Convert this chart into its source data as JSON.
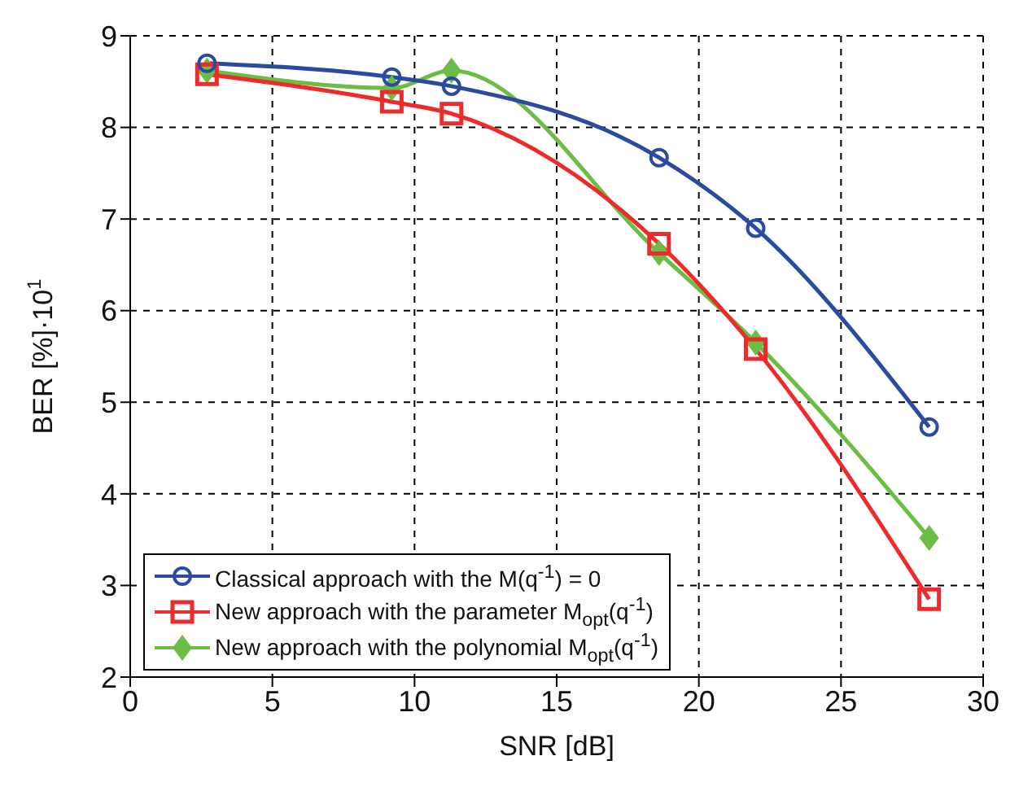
{
  "chart_data": {
    "type": "line",
    "xlabel": "SNR [dB]",
    "ylabel": "BER [%]·10$^{1}$",
    "x": [
      2.7,
      9.2,
      11.3,
      18.6,
      22,
      28.1
    ],
    "xlim": [
      0,
      30
    ],
    "xticks": [
      0,
      5,
      10,
      15,
      20,
      25,
      30
    ],
    "ylim": [
      2,
      9
    ],
    "yticks": [
      2,
      3,
      4,
      5,
      6,
      7,
      8,
      9
    ],
    "grid": true,
    "line_style": "solid",
    "legend": "bottom left",
    "series": [
      {
        "name": "Classical approach with the M(q$^{-1}$) = 0",
        "color": "#2b4ba0",
        "marker": "circle",
        "values": [
          8.7,
          8.55,
          8.45,
          7.67,
          6.9,
          4.73
        ]
      },
      {
        "name": "New approach with the parameter  M$_{opt}$(q$^{-1}$)",
        "color": "#ee2a2a",
        "marker": "square",
        "values": [
          8.58,
          8.28,
          8.15,
          6.73,
          5.58,
          2.85
        ]
      },
      {
        "name": "New approach with the polynomial M$_{opt}$(q$^{-1}$)",
        "color": "#6cbd45",
        "marker": "diamond",
        "values": [
          8.62,
          8.43,
          8.62,
          6.63,
          5.65,
          3.52
        ]
      }
    ]
  }
}
